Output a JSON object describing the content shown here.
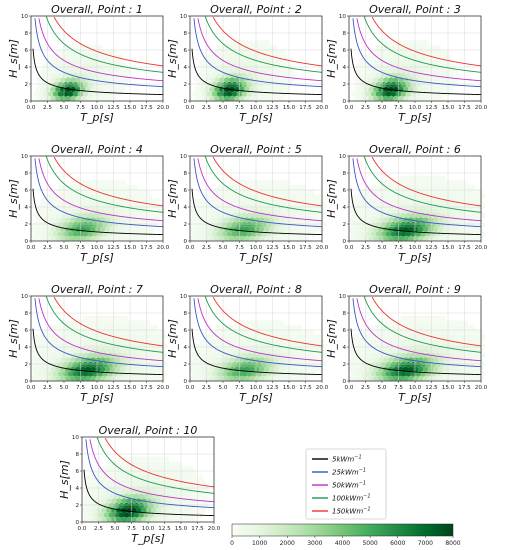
{
  "chart_data": {
    "type": "heatmap",
    "description_axes": {
      "xlabel": "T_p[s]",
      "ylabel": "H_s[m]",
      "xlim": [
        0,
        20
      ],
      "ylim": [
        0,
        10
      ],
      "xticks": [
        "0.0",
        "2.5",
        "5.0",
        "7.5",
        "10.0",
        "12.5",
        "15.0",
        "17.5",
        "20.0"
      ],
      "yticks": [
        "0",
        "2",
        "4",
        "6",
        "8",
        "10"
      ],
      "grid": true
    },
    "panels": [
      {
        "title": "Overall, Point : 1",
        "center": [
          5.6,
          1.2
        ],
        "spread": [
          1.6,
          0.8
        ],
        "peak": 8000
      },
      {
        "title": "Overall, Point : 2",
        "center": [
          6.0,
          1.3
        ],
        "spread": [
          1.7,
          0.9
        ],
        "peak": 8000
      },
      {
        "title": "Overall, Point : 3",
        "center": [
          6.3,
          1.3
        ],
        "spread": [
          1.8,
          0.9
        ],
        "peak": 8000
      },
      {
        "title": "Overall, Point : 4",
        "center": [
          7.8,
          1.4
        ],
        "spread": [
          2.6,
          1.0
        ],
        "peak": 5000
      },
      {
        "title": "Overall, Point : 5",
        "center": [
          8.2,
          1.4
        ],
        "spread": [
          2.8,
          1.0
        ],
        "peak": 5000
      },
      {
        "title": "Overall, Point : 6",
        "center": [
          8.6,
          1.3
        ],
        "spread": [
          2.9,
          1.0
        ],
        "peak": 7000
      },
      {
        "title": "Overall, Point : 7",
        "center": [
          8.6,
          1.3
        ],
        "spread": [
          2.9,
          1.0
        ],
        "peak": 7000
      },
      {
        "title": "Overall, Point : 8",
        "center": [
          8.3,
          1.3
        ],
        "spread": [
          2.8,
          1.0
        ],
        "peak": 5000
      },
      {
        "title": "Overall, Point : 9",
        "center": [
          8.6,
          1.3
        ],
        "spread": [
          2.9,
          1.0
        ],
        "peak": 7000
      },
      {
        "title": "Overall, Point : 10",
        "center": [
          7.0,
          1.3
        ],
        "spread": [
          2.3,
          1.0
        ],
        "peak": 8000
      }
    ],
    "power_curves": [
      {
        "name": "5kWm^-1",
        "power_kw_per_m": 5,
        "color": "#000000"
      },
      {
        "name": "25kWm^-1",
        "power_kw_per_m": 25,
        "color": "#3b57c4"
      },
      {
        "name": "50kWm^-1",
        "power_kw_per_m": 50,
        "color": "#c030c8"
      },
      {
        "name": "100kWm^-1",
        "power_kw_per_m": 100,
        "color": "#1f9a4e"
      },
      {
        "name": "150kWm^-1",
        "power_kw_per_m": 150,
        "color": "#e8352c"
      }
    ],
    "colorbar": {
      "cmap": "Greens",
      "min": 0,
      "max": 8000,
      "ticks": [
        "0",
        "1000",
        "2000",
        "3000",
        "4000",
        "5000",
        "6000",
        "7000",
        "8000"
      ]
    }
  },
  "legend": {
    "entries": [
      {
        "prefix": "5",
        "unit": "kWm",
        "sup": "−1"
      },
      {
        "prefix": "25",
        "unit": "kWm",
        "sup": "−1"
      },
      {
        "prefix": "50",
        "unit": "kWm",
        "sup": "−1"
      },
      {
        "prefix": "100",
        "unit": "kWm",
        "sup": "−1"
      },
      {
        "prefix": "150",
        "unit": "kWm",
        "sup": "−1"
      }
    ]
  }
}
